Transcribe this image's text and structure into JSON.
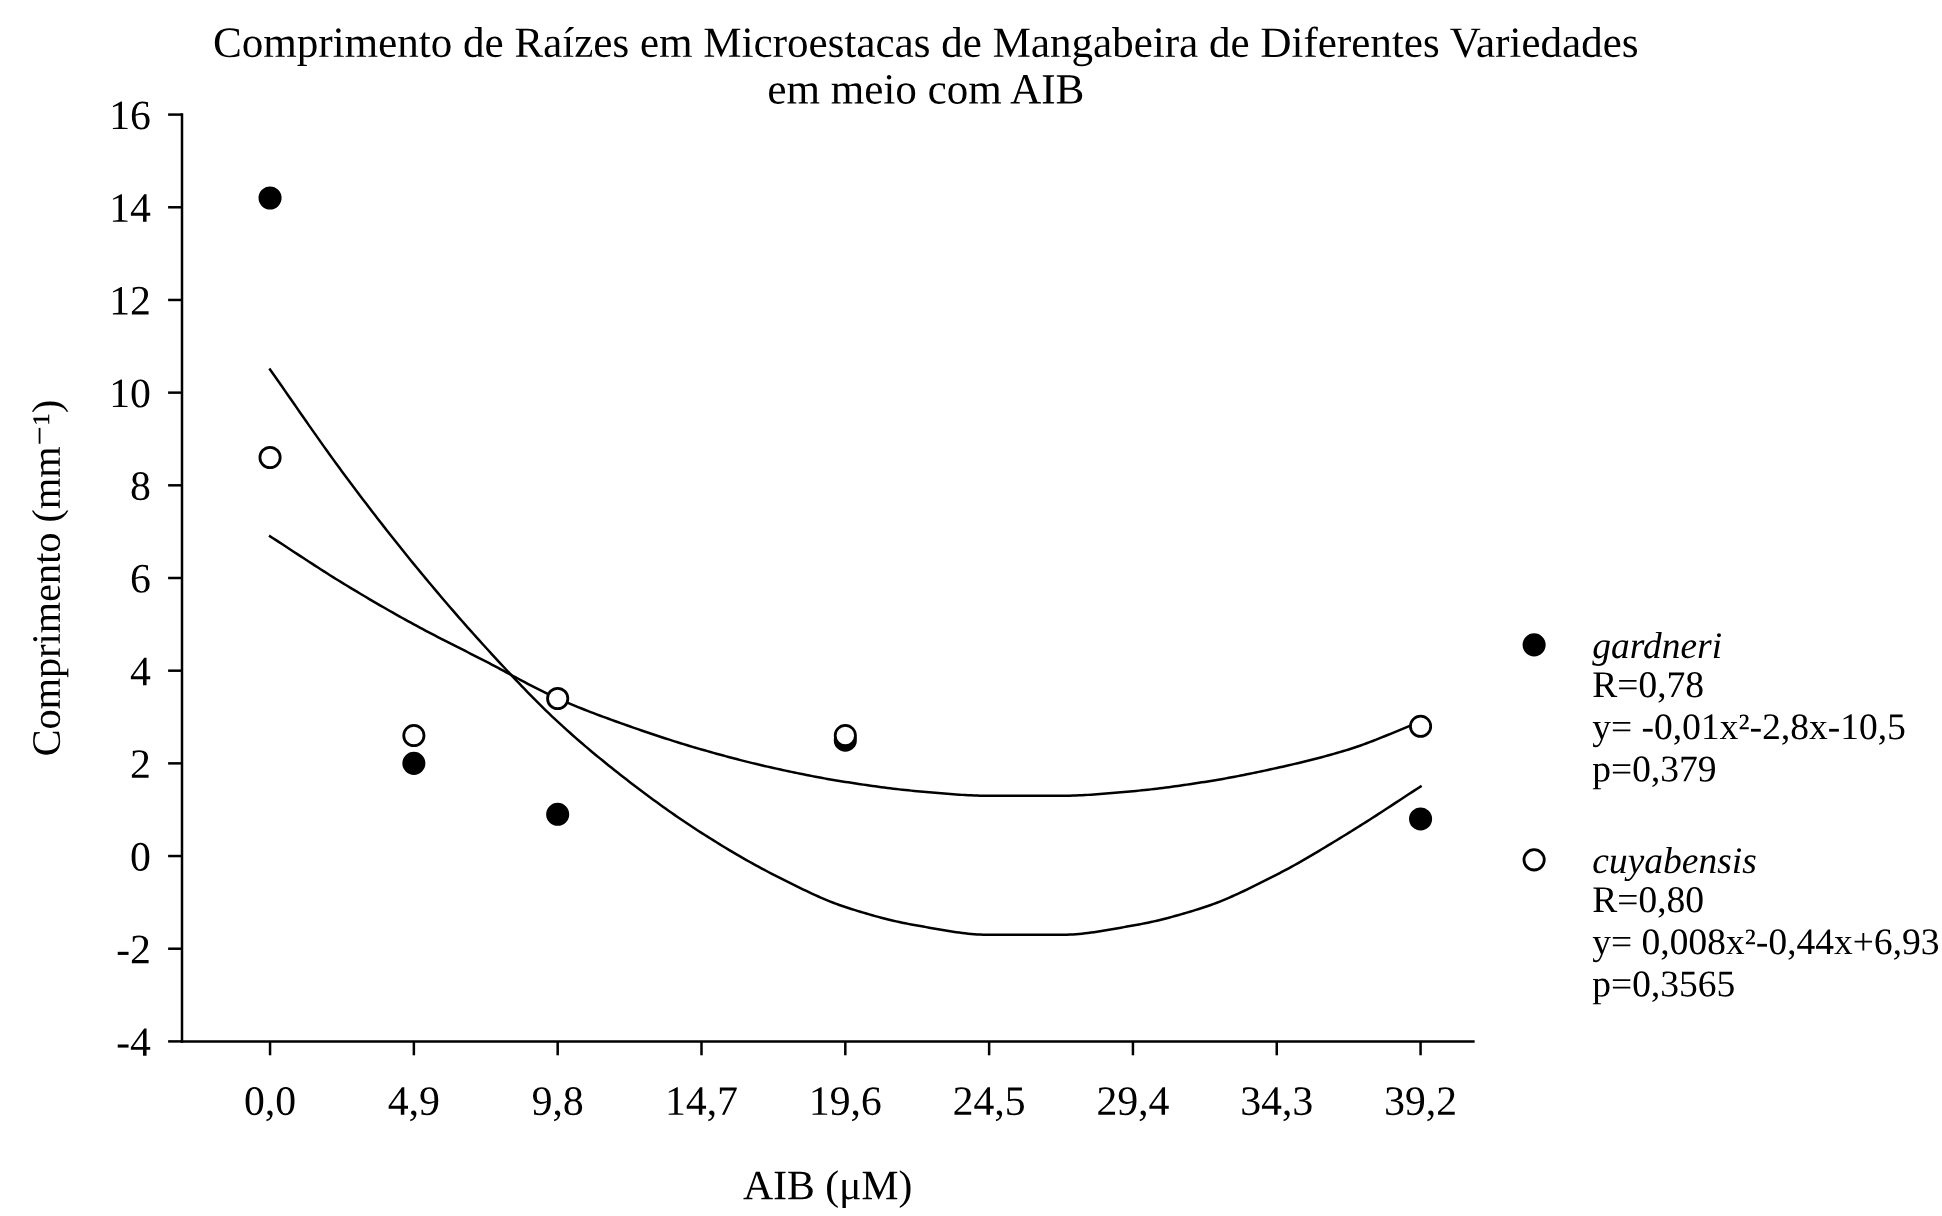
{
  "chart_data": {
    "type": "scatter",
    "title": "Comprimento de Raízes em Microestacas de Mangabeira de Diferentes Variedades\nem meio com AIB",
    "xlabel": "AIB (μM)",
    "ylabel": "Comprimento (mm⁻¹)",
    "xlim": [
      -3,
      41
    ],
    "xticks": [
      {
        "value": 0,
        "label": "0,0"
      },
      {
        "value": 4.9,
        "label": "4,9"
      },
      {
        "value": 9.8,
        "label": "9,8"
      },
      {
        "value": 14.7,
        "label": "14,7"
      },
      {
        "value": 19.6,
        "label": "19,6"
      },
      {
        "value": 24.5,
        "label": "24,5"
      },
      {
        "value": 29.4,
        "label": "29,4"
      },
      {
        "value": 34.3,
        "label": "34,3"
      },
      {
        "value": 39.2,
        "label": "39,2"
      }
    ],
    "ylim": [
      -4,
      16
    ],
    "yticks": [
      -4,
      -2,
      0,
      2,
      4,
      6,
      8,
      10,
      12,
      14,
      16
    ],
    "legend": "right",
    "x": [
      0,
      4.9,
      9.8,
      19.6,
      39.2
    ],
    "series": [
      {
        "type": "line",
        "color": "#000000",
        "marker": "none",
        "line_style": "solid",
        "x": [
          0,
          2.45,
          4.9,
          7.35,
          9.8,
          12.25,
          14.7,
          17.15,
          19.6,
          22.05,
          24.5,
          26.95,
          29.4,
          31.85,
          34.3,
          36.75,
          39.2
        ],
        "values": [
          10.5,
          8.3,
          6.3,
          4.5,
          2.9,
          1.6,
          0.5,
          -0.4,
          -1.1,
          -1.5,
          -1.7,
          -1.7,
          -1.5,
          -1.1,
          -0.4,
          0.5,
          1.5
        ]
      },
      {
        "type": "line",
        "color": "#000000",
        "marker": "none",
        "line_style": "solid",
        "x": [
          0,
          2.45,
          4.9,
          7.35,
          9.8,
          12.25,
          14.7,
          17.15,
          19.6,
          22.05,
          24.5,
          26.95,
          29.4,
          31.85,
          34.3,
          36.75,
          39.2
        ],
        "values": [
          6.9,
          5.9,
          5.0,
          4.2,
          3.4,
          2.8,
          2.3,
          1.9,
          1.6,
          1.4,
          1.3,
          1.3,
          1.4,
          1.6,
          1.9,
          2.3,
          2.9
        ]
      },
      {
        "name": "gardneri",
        "color": "#000000",
        "marker": "circle",
        "values": [
          14.2,
          2.0,
          0.9,
          2.5,
          0.8
        ]
      },
      {
        "name": "cuyabensis",
        "color": "#ffffff",
        "marker": "circle",
        "values": [
          8.6,
          2.6,
          3.4,
          2.6,
          2.8
        ]
      }
    ],
    "annotations": [
      "R=0,78\ny= -0,01x²-2,8x-10,5\np=0,379",
      "R=0,80\ny= 0,008x²-0,44x+6,93\np=0,3565"
    ]
  }
}
